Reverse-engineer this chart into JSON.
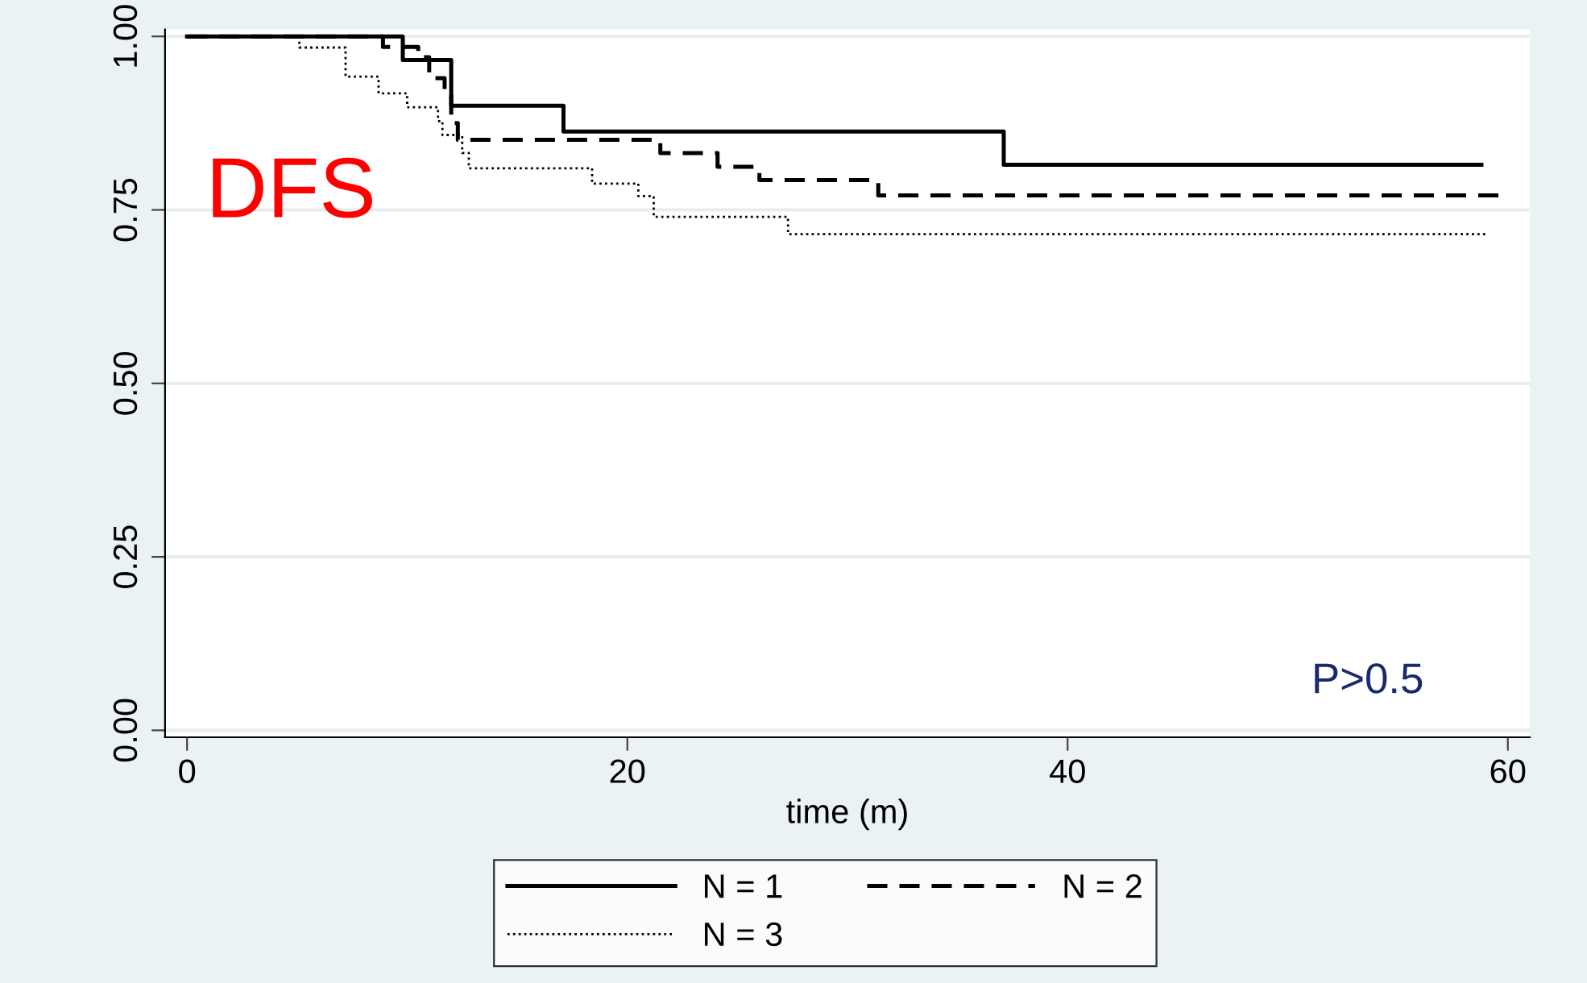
{
  "chart_data": {
    "type": "step",
    "xlabel": "time (m)",
    "annotations": [
      "DFS",
      "P>0.5"
    ],
    "xlim": [
      -1,
      61
    ],
    "ylim": [
      -0.01,
      1.01
    ],
    "xticks": [
      0,
      20,
      40,
      60
    ],
    "yticks": [
      {
        "value": 0,
        "label": "0.00"
      },
      {
        "value": 0.25,
        "label": "0.25"
      },
      {
        "value": 0.5,
        "label": "0.50"
      },
      {
        "value": 0.75,
        "label": "0.75"
      },
      {
        "value": 1,
        "label": "1.00"
      }
    ],
    "grid": "y",
    "legend": "bottom",
    "marker": "none",
    "series": [
      {
        "name": "N = 1",
        "color": "#000000",
        "line_style": "solid",
        "x": [
          0,
          9.8,
          12,
          17.1,
          37.1,
          58.8
        ],
        "values": [
          1,
          0.966,
          0.9,
          0.863,
          0.815,
          0.815
        ]
      },
      {
        "name": "N = 2",
        "color": "#000000",
        "line_style": "dashed",
        "x": [
          0,
          8.9,
          10.5,
          11,
          11.7,
          12,
          12.3,
          21.5,
          24.1,
          26,
          31.4,
          59.8
        ],
        "values": [
          1,
          0.985,
          0.97,
          0.94,
          0.915,
          0.875,
          0.851,
          0.832,
          0.812,
          0.793,
          0.771,
          0.771
        ]
      },
      {
        "name": "N = 3",
        "color": "#000000",
        "line_style": "dotted",
        "x": [
          0,
          5.1,
          7.2,
          8.7,
          10,
          11.4,
          11.6,
          12.5,
          12.8,
          18.4,
          20.5,
          21.2,
          27.3,
          59.1
        ],
        "values": [
          1,
          0.984,
          0.942,
          0.918,
          0.898,
          0.878,
          0.858,
          0.832,
          0.81,
          0.788,
          0.77,
          0.74,
          0.715,
          0.715
        ]
      }
    ]
  }
}
